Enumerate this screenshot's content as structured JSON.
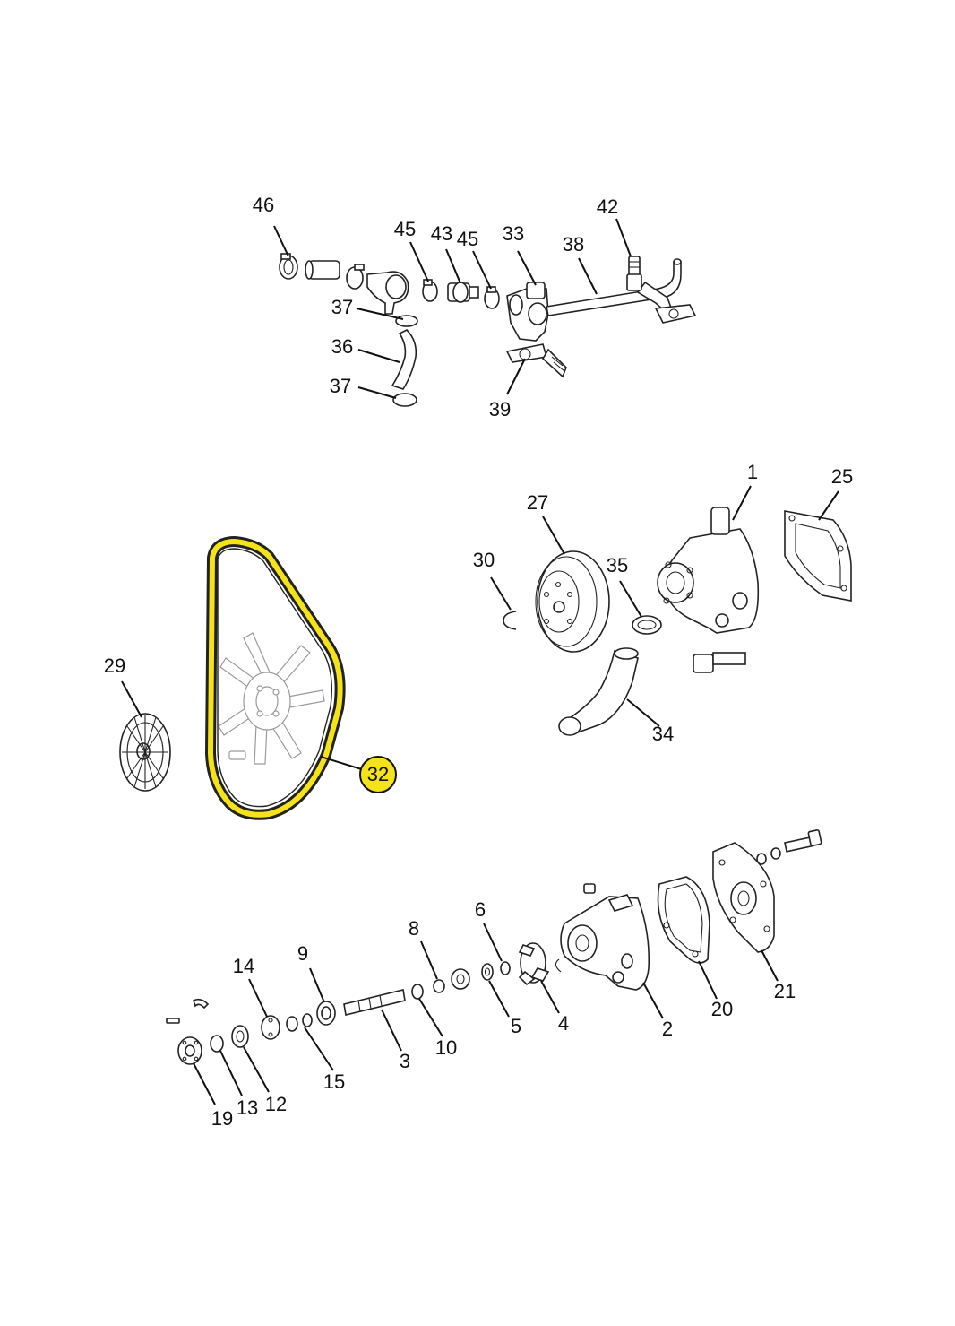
{
  "callouts": {
    "c46": "46",
    "c45a": "45",
    "c43": "43",
    "c45b": "45",
    "c33": "33",
    "c38": "38",
    "c42": "42",
    "c37a": "37",
    "c36": "36",
    "c37b": "37",
    "c39": "39",
    "c1": "1",
    "c25": "25",
    "c27": "27",
    "c30": "30",
    "c35": "35",
    "c34": "34",
    "c29": "29",
    "c32": "32",
    "c14": "14",
    "c9": "9",
    "c8": "8",
    "c6": "6",
    "c21": "21",
    "c20": "20",
    "c2": "2",
    "c4": "4",
    "c5": "5",
    "c10": "10",
    "c3": "3",
    "c15": "15",
    "c12": "12",
    "c13": "13",
    "c19": "19"
  },
  "highlight": {
    "selected_callout": "32",
    "color": "#f4e21a"
  }
}
